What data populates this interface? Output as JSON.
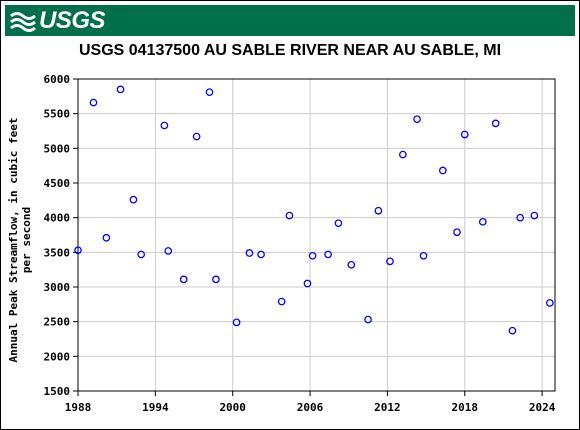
{
  "header": {
    "agency_logo_text": "USGS",
    "title": "USGS 04137500 AU SABLE RIVER NEAR AU SABLE, MI"
  },
  "colors": {
    "banner": "#00704a",
    "marker": "#0000ff",
    "grid": "#cccccc"
  },
  "chart_data": {
    "type": "scatter",
    "title": "USGS 04137500 AU SABLE RIVER NEAR AU SABLE, MI",
    "xlabel": "",
    "ylabel_lines": [
      "Annual Peak Streamflow, in cubic feet",
      "per second"
    ],
    "xlim": [
      1988,
      2025
    ],
    "ylim": [
      1500,
      6000
    ],
    "x_ticks": [
      1988,
      1994,
      2000,
      2006,
      2012,
      2018,
      2024
    ],
    "y_ticks": [
      1500,
      2000,
      2500,
      3000,
      3500,
      4000,
      4500,
      5000,
      5500,
      6000
    ],
    "grid": true,
    "marker": "open-circle",
    "series": [
      {
        "points": [
          {
            "x": 1988.0,
            "y": 3530
          },
          {
            "x": 1989.2,
            "y": 5660
          },
          {
            "x": 1990.2,
            "y": 3710
          },
          {
            "x": 1991.3,
            "y": 5850
          },
          {
            "x": 1992.3,
            "y": 4260
          },
          {
            "x": 1992.9,
            "y": 3470
          },
          {
            "x": 1994.7,
            "y": 5330
          },
          {
            "x": 1995.0,
            "y": 3520
          },
          {
            "x": 1996.2,
            "y": 3110
          },
          {
            "x": 1997.2,
            "y": 5170
          },
          {
            "x": 1998.2,
            "y": 5810
          },
          {
            "x": 1998.7,
            "y": 3110
          },
          {
            "x": 2000.3,
            "y": 2490
          },
          {
            "x": 2001.3,
            "y": 3490
          },
          {
            "x": 2002.2,
            "y": 3470
          },
          {
            "x": 2003.8,
            "y": 2790
          },
          {
            "x": 2004.4,
            "y": 4030
          },
          {
            "x": 2005.8,
            "y": 3050
          },
          {
            "x": 2006.2,
            "y": 3450
          },
          {
            "x": 2007.4,
            "y": 3470
          },
          {
            "x": 2008.2,
            "y": 3920
          },
          {
            "x": 2009.2,
            "y": 3320
          },
          {
            "x": 2010.5,
            "y": 2530
          },
          {
            "x": 2011.3,
            "y": 4100
          },
          {
            "x": 2012.2,
            "y": 3370
          },
          {
            "x": 2013.2,
            "y": 4910
          },
          {
            "x": 2014.3,
            "y": 5420
          },
          {
            "x": 2014.8,
            "y": 3450
          },
          {
            "x": 2016.3,
            "y": 4680
          },
          {
            "x": 2017.4,
            "y": 3790
          },
          {
            "x": 2018.0,
            "y": 5200
          },
          {
            "x": 2019.4,
            "y": 3940
          },
          {
            "x": 2020.4,
            "y": 5360
          },
          {
            "x": 2021.7,
            "y": 2370
          },
          {
            "x": 2022.3,
            "y": 4000
          },
          {
            "x": 2023.4,
            "y": 4030
          },
          {
            "x": 2024.6,
            "y": 2770
          }
        ]
      }
    ]
  }
}
